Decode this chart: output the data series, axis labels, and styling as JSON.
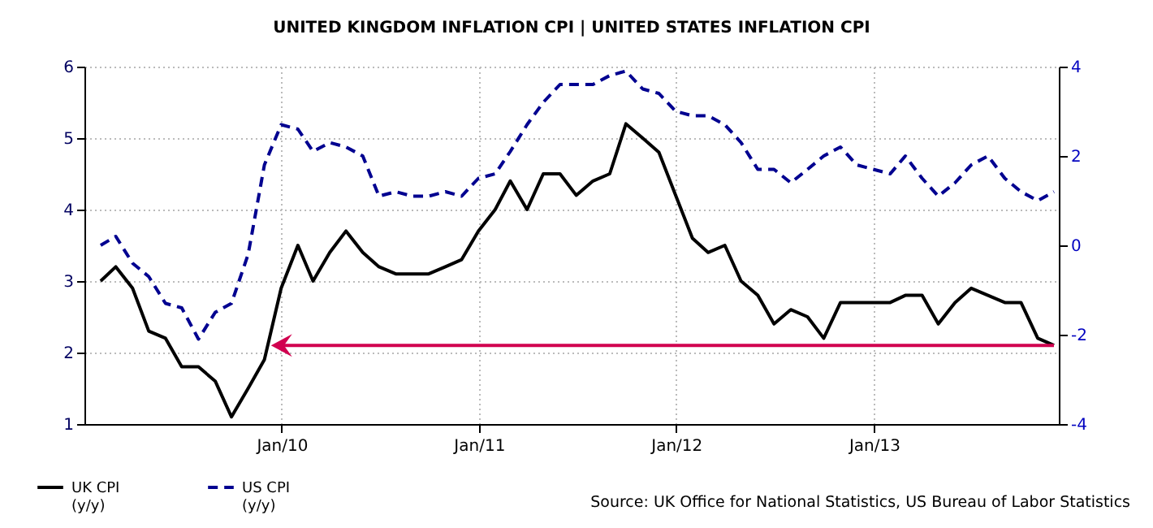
{
  "chart_data": {
    "type": "line",
    "title": "UNITED KINGDOM INFLATION CPI |  UNITED STATES INFLATION CPI",
    "x": [
      "2009-01-31",
      "2009-02-28",
      "2009-03-31",
      "2009-04-30",
      "2009-05-31",
      "2009-06-30",
      "2009-07-31",
      "2009-08-31",
      "2009-09-30",
      "2009-10-31",
      "2009-11-30",
      "2009-12-31",
      "2010-01-31",
      "2010-02-28",
      "2010-03-31",
      "2010-04-30",
      "2010-05-31",
      "2010-06-30",
      "2010-07-31",
      "2010-08-31",
      "2010-09-30",
      "2010-10-31",
      "2010-11-30",
      "2010-12-31",
      "2011-01-31",
      "2011-02-28",
      "2011-03-31",
      "2011-04-30",
      "2011-05-31",
      "2011-06-30",
      "2011-07-31",
      "2011-08-31",
      "2011-09-30",
      "2011-10-31",
      "2011-11-30",
      "2011-12-31",
      "2012-01-31",
      "2012-02-29",
      "2012-03-31",
      "2012-04-30",
      "2012-05-31",
      "2012-06-30",
      "2012-07-31",
      "2012-08-31",
      "2012-09-30",
      "2012-10-31",
      "2012-11-30",
      "2012-12-31",
      "2013-01-31",
      "2013-02-28",
      "2013-03-31",
      "2013-04-30",
      "2013-05-31",
      "2013-06-30",
      "2013-07-31",
      "2013-08-31",
      "2013-09-30",
      "2013-10-31",
      "2013-11-30"
    ],
    "series": [
      {
        "name": "UK CPI (y/y)",
        "color": "#000000",
        "line_style": "solid",
        "values": [
          3.0,
          3.2,
          2.9,
          2.3,
          2.2,
          1.8,
          1.8,
          1.6,
          1.1,
          1.5,
          1.9,
          2.9,
          3.5,
          3.0,
          3.4,
          3.7,
          3.4,
          3.2,
          3.1,
          3.1,
          3.1,
          3.2,
          3.3,
          3.7,
          4.0,
          4.4,
          4.0,
          4.5,
          4.5,
          4.2,
          4.4,
          4.5,
          5.2,
          5.0,
          4.8,
          4.2,
          3.6,
          3.4,
          3.5,
          3.0,
          2.8,
          2.4,
          2.6,
          2.5,
          2.2,
          2.7,
          2.7,
          2.7,
          2.7,
          2.8,
          2.8,
          2.4,
          2.7,
          2.9,
          2.8,
          2.7,
          2.7,
          2.2,
          2.1
        ]
      },
      {
        "name": "US CPI (y/y)",
        "color": "#000090",
        "line_style": "dashed",
        "axis": "y2",
        "values": [
          0.0,
          0.2,
          -0.4,
          -0.7,
          -1.3,
          -1.4,
          -2.1,
          -1.5,
          -1.3,
          -0.2,
          1.8,
          2.7,
          2.6,
          2.1,
          2.3,
          2.2,
          2.0,
          1.1,
          1.2,
          1.1,
          1.1,
          1.2,
          1.1,
          1.5,
          1.6,
          2.1,
          2.7,
          3.2,
          3.6,
          3.6,
          3.6,
          3.8,
          3.9,
          3.5,
          3.4,
          3.0,
          2.9,
          2.9,
          2.7,
          2.3,
          1.7,
          1.7,
          1.4,
          1.7,
          2.0,
          2.2,
          1.8,
          1.7,
          1.6,
          2.0,
          1.5,
          1.1,
          1.4,
          1.8,
          2.0,
          1.5,
          1.2,
          1.0,
          1.2
        ]
      }
    ],
    "xlim": [
      "2009-01-01",
      "2013-12-09"
    ],
    "xticks": [
      {
        "value": "2010-01-01",
        "label": "Jan/10"
      },
      {
        "value": "2011-01-01",
        "label": "Jan/11"
      },
      {
        "value": "2012-01-01",
        "label": "Jan/12"
      },
      {
        "value": "2013-01-01",
        "label": "Jan/13"
      }
    ],
    "ylim": [
      1,
      6
    ],
    "yticks": [
      1,
      2,
      3,
      4,
      5,
      6
    ],
    "y2lim": [
      -4,
      4
    ],
    "y2ticks": [
      -4,
      -2,
      0,
      2,
      4
    ],
    "grid": true,
    "legend": "bottom left",
    "marker": "none",
    "annotations": [
      "Source: UK Office for National Statistics, US Bureau of Labor Statistics"
    ]
  }
}
